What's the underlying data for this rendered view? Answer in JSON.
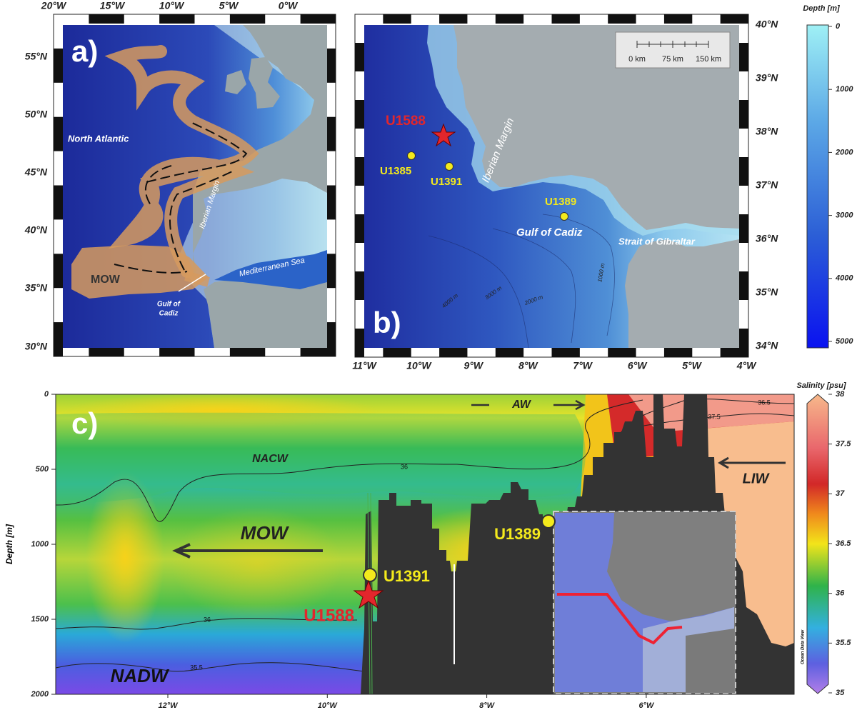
{
  "panel_a": {
    "label": "a)",
    "lon_ticks": [
      "20°W",
      "15°W",
      "10°W",
      "5°W",
      "0°W"
    ],
    "lat_ticks": [
      "55°N",
      "50°N",
      "45°N",
      "40°N",
      "35°N",
      "30°N"
    ],
    "north_atlantic": "North Atlantic",
    "iberian_margin": "Iberian Margin",
    "mow": "MOW",
    "mediterranean_sea": "Mediterranean Sea",
    "gulf_of_cadiz": [
      "Gulf of",
      "Cadiz"
    ]
  },
  "panel_b": {
    "label": "b)",
    "lon_ticks": [
      "11°W",
      "10°W",
      "9°W",
      "8°W",
      "7°W",
      "6°W",
      "5°W",
      "4°W"
    ],
    "lat_ticks": [
      "40°N",
      "39°N",
      "38°N",
      "37°N",
      "36°N",
      "35°N",
      "34°N"
    ],
    "scale_bar": [
      "0 km",
      "75 km",
      "150 km"
    ],
    "sites": [
      "U1588",
      "U1385",
      "U1391",
      "U1389"
    ],
    "iberian_margin": "Iberian Margin",
    "gulf_of_cadiz": "Gulf of Cadiz",
    "strait_of_gibraltar": "Strait of Gibraltar",
    "isobaths": [
      "1000 m",
      "2000 m",
      "3000 m",
      "4000 m"
    ]
  },
  "depth_colorbar": {
    "title": "Depth [m]",
    "ticks": [
      "0",
      "1000",
      "2000",
      "3000",
      "4000",
      "5000"
    ]
  },
  "panel_c": {
    "label": "c)",
    "y_axis_title": "Depth [m]",
    "y_ticks": [
      "0",
      "500",
      "1000",
      "1500",
      "2000"
    ],
    "x_ticks": [
      "12°W",
      "10°W",
      "8°W",
      "6°W"
    ],
    "water_masses": [
      "AW",
      "LIW",
      "NACW",
      "MOW",
      "NADW"
    ],
    "sites": [
      "U1389",
      "U1391",
      "U1588"
    ],
    "contour_labels": [
      "36.5",
      "37.5",
      "36",
      "36",
      "35.5"
    ],
    "credit": "Ocean Data View"
  },
  "salinity_colorbar": {
    "title": "Salinity [psu]",
    "ticks": [
      "38",
      "37.5",
      "37",
      "36.5",
      "36",
      "35.5",
      "35"
    ]
  }
}
